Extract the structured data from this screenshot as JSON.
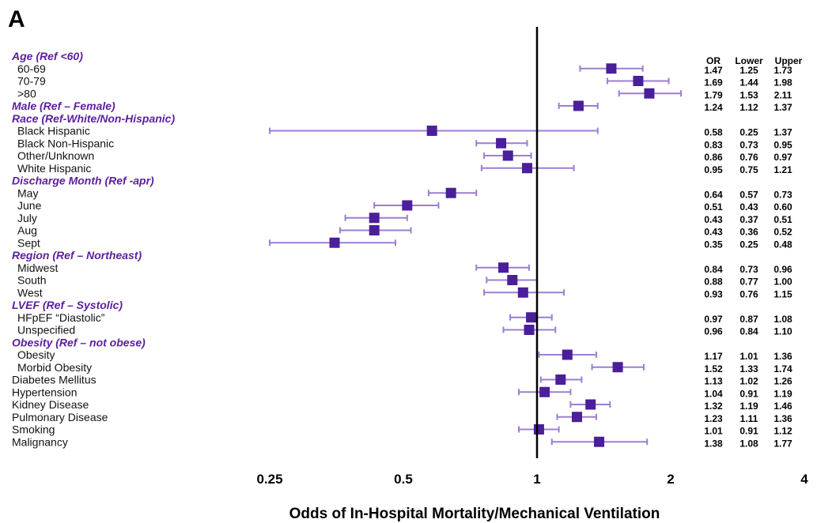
{
  "panel_label": "A",
  "colors": {
    "marker": "#4b1e9a",
    "ci_line": "#9b7fd4",
    "group_label": "#5b1f9e",
    "reference_line": "#000000"
  },
  "chart_data": {
    "type": "scatter",
    "subtype": "forest-plot",
    "x_scale": "log",
    "xlim": [
      0.25,
      4
    ],
    "xlabel": "Odds of In-Hospital Mortality/Mechanical Ventilation",
    "x_ticks": [
      "0.25",
      "0.5",
      "1",
      "2",
      "4"
    ],
    "reference_value": 1,
    "columns": [
      "OR",
      "Lower",
      "Upper"
    ],
    "rows": [
      {
        "kind": "group",
        "label": "Age (Ref <60)"
      },
      {
        "kind": "item",
        "label": "60-69",
        "or": 1.47,
        "lower": 1.25,
        "upper": 1.73,
        "or_text": "1.47",
        "lower_text": "1.25",
        "upper_text": "1.73"
      },
      {
        "kind": "item",
        "label": "70-79",
        "or": 1.69,
        "lower": 1.44,
        "upper": 1.98,
        "or_text": "1.69",
        "lower_text": "1.44",
        "upper_text": "1.98"
      },
      {
        "kind": "item",
        "label": ">80",
        "or": 1.79,
        "lower": 1.53,
        "upper": 2.11,
        "or_text": "1.79",
        "lower_text": "1.53",
        "upper_text": "2.11"
      },
      {
        "kind": "group",
        "label": "Male  (Ref – Female)",
        "or": 1.24,
        "lower": 1.12,
        "upper": 1.37,
        "or_text": "1.24",
        "lower_text": "1.12",
        "upper_text": "1.37"
      },
      {
        "kind": "group",
        "label": "Race (Ref-White/Non-Hispanic)"
      },
      {
        "kind": "item",
        "label": "Black Hispanic",
        "or": 0.58,
        "lower": 0.25,
        "upper": 1.37,
        "or_text": "0.58",
        "lower_text": "0.25",
        "upper_text": "1.37"
      },
      {
        "kind": "item",
        "label": "Black Non-Hispanic",
        "or": 0.83,
        "lower": 0.73,
        "upper": 0.95,
        "or_text": "0.83",
        "lower_text": "0.73",
        "upper_text": "0.95"
      },
      {
        "kind": "item",
        "label": "Other/Unknown",
        "or": 0.86,
        "lower": 0.76,
        "upper": 0.97,
        "or_text": "0.86",
        "lower_text": "0.76",
        "upper_text": "0.97"
      },
      {
        "kind": "item",
        "label": "White Hispanic",
        "or": 0.95,
        "lower": 0.75,
        "upper": 1.21,
        "or_text": "0.95",
        "lower_text": "0.75",
        "upper_text": "1.21"
      },
      {
        "kind": "group",
        "label": "Discharge Month (Ref -apr)"
      },
      {
        "kind": "item",
        "label": "May",
        "or": 0.64,
        "lower": 0.57,
        "upper": 0.73,
        "or_text": "0.64",
        "lower_text": "0.57",
        "upper_text": "0.73"
      },
      {
        "kind": "item",
        "label": "June",
        "or": 0.51,
        "lower": 0.43,
        "upper": 0.6,
        "or_text": "0.51",
        "lower_text": "0.43",
        "upper_text": "0.60"
      },
      {
        "kind": "item",
        "label": "July",
        "or": 0.43,
        "lower": 0.37,
        "upper": 0.51,
        "or_text": "0.43",
        "lower_text": "0.37",
        "upper_text": "0.51"
      },
      {
        "kind": "item",
        "label": "Aug",
        "or": 0.43,
        "lower": 0.36,
        "upper": 0.52,
        "or_text": "0.43",
        "lower_text": "0.36",
        "upper_text": "0.52"
      },
      {
        "kind": "item",
        "label": "Sept",
        "or": 0.35,
        "lower": 0.25,
        "upper": 0.48,
        "or_text": "0.35",
        "lower_text": "0.25",
        "upper_text": "0.48"
      },
      {
        "kind": "group",
        "label": "Region (Ref – Northeast)"
      },
      {
        "kind": "item",
        "label": "Midwest",
        "or": 0.84,
        "lower": 0.73,
        "upper": 0.96,
        "or_text": "0.84",
        "lower_text": "0.73",
        "upper_text": "0.96"
      },
      {
        "kind": "item",
        "label": "South",
        "or": 0.88,
        "lower": 0.77,
        "upper": 1.0,
        "or_text": "0.88",
        "lower_text": "0.77",
        "upper_text": "1.00"
      },
      {
        "kind": "item",
        "label": "West",
        "or": 0.93,
        "lower": 0.76,
        "upper": 1.15,
        "or_text": "0.93",
        "lower_text": "0.76",
        "upper_text": "1.15"
      },
      {
        "kind": "group",
        "label": "LVEF (Ref – Systolic)"
      },
      {
        "kind": "item",
        "label": "HFpEF “Diastolic”",
        "or": 0.97,
        "lower": 0.87,
        "upper": 1.08,
        "or_text": "0.97",
        "lower_text": "0.87",
        "upper_text": "1.08"
      },
      {
        "kind": "item",
        "label": "Unspecified",
        "or": 0.96,
        "lower": 0.84,
        "upper": 1.1,
        "or_text": "0.96",
        "lower_text": "0.84",
        "upper_text": "1.10"
      },
      {
        "kind": "group",
        "label": "Obesity  (Ref – not obese)"
      },
      {
        "kind": "item",
        "label": "Obesity",
        "or": 1.17,
        "lower": 1.01,
        "upper": 1.36,
        "or_text": "1.17",
        "lower_text": "1.01",
        "upper_text": "1.36"
      },
      {
        "kind": "item",
        "label": "Morbid Obesity",
        "or": 1.52,
        "lower": 1.33,
        "upper": 1.74,
        "or_text": "1.52",
        "lower_text": "1.33",
        "upper_text": "1.74"
      },
      {
        "kind": "plain",
        "label": "Diabetes Mellitus",
        "or": 1.13,
        "lower": 1.02,
        "upper": 1.26,
        "or_text": "1.13",
        "lower_text": "1.02",
        "upper_text": "1.26"
      },
      {
        "kind": "plain",
        "label": "Hypertension",
        "or": 1.04,
        "lower": 0.91,
        "upper": 1.19,
        "or_text": "1.04",
        "lower_text": "0.91",
        "upper_text": "1.19"
      },
      {
        "kind": "plain",
        "label": "Kidney Disease",
        "or": 1.32,
        "lower": 1.19,
        "upper": 1.46,
        "or_text": "1.32",
        "lower_text": "1.19",
        "upper_text": "1.46"
      },
      {
        "kind": "plain",
        "label": "Pulmonary Disease",
        "or": 1.23,
        "lower": 1.11,
        "upper": 1.36,
        "or_text": "1.23",
        "lower_text": "1.11",
        "upper_text": "1.36"
      },
      {
        "kind": "plain",
        "label": "Smoking",
        "or": 1.01,
        "lower": 0.91,
        "upper": 1.12,
        "or_text": "1.01",
        "lower_text": "0.91",
        "upper_text": "1.12"
      },
      {
        "kind": "plain",
        "label": "Malignancy",
        "or": 1.38,
        "lower": 1.08,
        "upper": 1.77,
        "or_text": "1.38",
        "lower_text": "1.08",
        "upper_text": "1.77"
      }
    ]
  }
}
